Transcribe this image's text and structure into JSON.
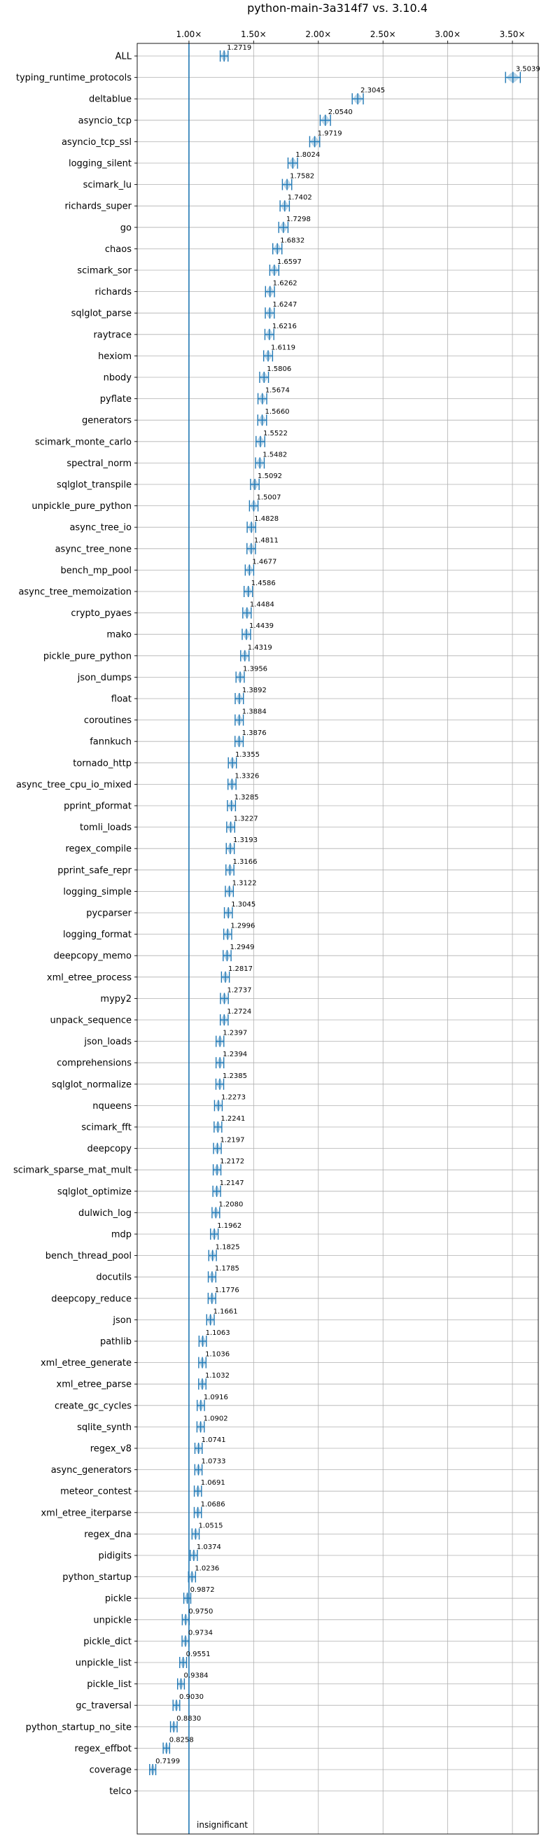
{
  "chart_data": {
    "type": "violin",
    "title": "python-main-3a314f7 vs. 3.10.4",
    "xlim": [
      0.6,
      3.7
    ],
    "x_ticks": [
      1.0,
      1.5,
      2.0,
      2.5,
      3.0,
      3.5
    ],
    "x_tick_labels": [
      "1.00×",
      "1.50×",
      "2.00×",
      "2.50×",
      "3.00×",
      "3.50×"
    ],
    "reference_line": 1.0,
    "grid": true,
    "insignificant_label": "insignificant",
    "benchmarks": [
      {
        "name": "ALL",
        "value": 1.2719,
        "label": "1.2719"
      },
      {
        "name": "typing_runtime_protocols",
        "value": 3.5039,
        "label": "3.5039"
      },
      {
        "name": "deltablue",
        "value": 2.3045,
        "label": "2.3045"
      },
      {
        "name": "asyncio_tcp",
        "value": 2.054,
        "label": "2.0540"
      },
      {
        "name": "asyncio_tcp_ssl",
        "value": 1.9719,
        "label": "1.9719"
      },
      {
        "name": "logging_silent",
        "value": 1.8024,
        "label": "1.8024"
      },
      {
        "name": "scimark_lu",
        "value": 1.7582,
        "label": "1.7582"
      },
      {
        "name": "richards_super",
        "value": 1.7402,
        "label": "1.7402"
      },
      {
        "name": "go",
        "value": 1.7298,
        "label": "1.7298"
      },
      {
        "name": "chaos",
        "value": 1.6832,
        "label": "1.6832"
      },
      {
        "name": "scimark_sor",
        "value": 1.6597,
        "label": "1.6597"
      },
      {
        "name": "richards",
        "value": 1.6262,
        "label": "1.6262"
      },
      {
        "name": "sqlglot_parse",
        "value": 1.6247,
        "label": "1.6247"
      },
      {
        "name": "raytrace",
        "value": 1.6216,
        "label": "1.6216"
      },
      {
        "name": "hexiom",
        "value": 1.6119,
        "label": "1.6119"
      },
      {
        "name": "nbody",
        "value": 1.5806,
        "label": "1.5806"
      },
      {
        "name": "pyflate",
        "value": 1.5674,
        "label": "1.5674"
      },
      {
        "name": "generators",
        "value": 1.566,
        "label": "1.5660"
      },
      {
        "name": "scimark_monte_carlo",
        "value": 1.5522,
        "label": "1.5522"
      },
      {
        "name": "spectral_norm",
        "value": 1.5482,
        "label": "1.5482"
      },
      {
        "name": "sqlglot_transpile",
        "value": 1.5092,
        "label": "1.5092"
      },
      {
        "name": "unpickle_pure_python",
        "value": 1.5007,
        "label": "1.5007"
      },
      {
        "name": "async_tree_io",
        "value": 1.4828,
        "label": "1.4828"
      },
      {
        "name": "async_tree_none",
        "value": 1.4811,
        "label": "1.4811"
      },
      {
        "name": "bench_mp_pool",
        "value": 1.4677,
        "label": "1.4677"
      },
      {
        "name": "async_tree_memoization",
        "value": 1.4586,
        "label": "1.4586"
      },
      {
        "name": "crypto_pyaes",
        "value": 1.4484,
        "label": "1.4484"
      },
      {
        "name": "mako",
        "value": 1.4439,
        "label": "1.4439"
      },
      {
        "name": "pickle_pure_python",
        "value": 1.4319,
        "label": "1.4319"
      },
      {
        "name": "json_dumps",
        "value": 1.3956,
        "label": "1.3956"
      },
      {
        "name": "float",
        "value": 1.3892,
        "label": "1.3892"
      },
      {
        "name": "coroutines",
        "value": 1.3884,
        "label": "1.3884"
      },
      {
        "name": "fannkuch",
        "value": 1.3876,
        "label": "1.3876"
      },
      {
        "name": "tornado_http",
        "value": 1.3355,
        "label": "1.3355"
      },
      {
        "name": "async_tree_cpu_io_mixed",
        "value": 1.3326,
        "label": "1.3326"
      },
      {
        "name": "pprint_pformat",
        "value": 1.3285,
        "label": "1.3285"
      },
      {
        "name": "tomli_loads",
        "value": 1.3227,
        "label": "1.3227"
      },
      {
        "name": "regex_compile",
        "value": 1.3193,
        "label": "1.3193"
      },
      {
        "name": "pprint_safe_repr",
        "value": 1.3166,
        "label": "1.3166"
      },
      {
        "name": "logging_simple",
        "value": 1.3122,
        "label": "1.3122"
      },
      {
        "name": "pycparser",
        "value": 1.3045,
        "label": "1.3045"
      },
      {
        "name": "logging_format",
        "value": 1.2996,
        "label": "1.2996"
      },
      {
        "name": "deepcopy_memo",
        "value": 1.2949,
        "label": "1.2949"
      },
      {
        "name": "xml_etree_process",
        "value": 1.2817,
        "label": "1.2817"
      },
      {
        "name": "mypy2",
        "value": 1.2737,
        "label": "1.2737"
      },
      {
        "name": "unpack_sequence",
        "value": 1.2724,
        "label": "1.2724"
      },
      {
        "name": "json_loads",
        "value": 1.2397,
        "label": "1.2397"
      },
      {
        "name": "comprehensions",
        "value": 1.2394,
        "label": "1.2394"
      },
      {
        "name": "sqlglot_normalize",
        "value": 1.2385,
        "label": "1.2385"
      },
      {
        "name": "nqueens",
        "value": 1.2273,
        "label": "1.2273"
      },
      {
        "name": "scimark_fft",
        "value": 1.2241,
        "label": "1.2241"
      },
      {
        "name": "deepcopy",
        "value": 1.2197,
        "label": "1.2197"
      },
      {
        "name": "scimark_sparse_mat_mult",
        "value": 1.2172,
        "label": "1.2172"
      },
      {
        "name": "sqlglot_optimize",
        "value": 1.2147,
        "label": "1.2147"
      },
      {
        "name": "dulwich_log",
        "value": 1.208,
        "label": "1.2080"
      },
      {
        "name": "mdp",
        "value": 1.1962,
        "label": "1.1962"
      },
      {
        "name": "bench_thread_pool",
        "value": 1.1825,
        "label": "1.1825"
      },
      {
        "name": "docutils",
        "value": 1.1785,
        "label": "1.1785"
      },
      {
        "name": "deepcopy_reduce",
        "value": 1.1776,
        "label": "1.1776"
      },
      {
        "name": "json",
        "value": 1.1661,
        "label": "1.1661"
      },
      {
        "name": "pathlib",
        "value": 1.1063,
        "label": "1.1063"
      },
      {
        "name": "xml_etree_generate",
        "value": 1.1036,
        "label": "1.1036"
      },
      {
        "name": "xml_etree_parse",
        "value": 1.1032,
        "label": "1.1032"
      },
      {
        "name": "create_gc_cycles",
        "value": 1.0916,
        "label": "1.0916"
      },
      {
        "name": "sqlite_synth",
        "value": 1.0902,
        "label": "1.0902"
      },
      {
        "name": "regex_v8",
        "value": 1.0741,
        "label": "1.0741"
      },
      {
        "name": "async_generators",
        "value": 1.0733,
        "label": "1.0733"
      },
      {
        "name": "meteor_contest",
        "value": 1.0691,
        "label": "1.0691"
      },
      {
        "name": "xml_etree_iterparse",
        "value": 1.0686,
        "label": "1.0686"
      },
      {
        "name": "regex_dna",
        "value": 1.0515,
        "label": "1.0515"
      },
      {
        "name": "pidigits",
        "value": 1.0374,
        "label": "1.0374"
      },
      {
        "name": "python_startup",
        "value": 1.0236,
        "label": "1.0236"
      },
      {
        "name": "pickle",
        "value": 0.9872,
        "label": "0.9872"
      },
      {
        "name": "unpickle",
        "value": 0.975,
        "label": "0.9750"
      },
      {
        "name": "pickle_dict",
        "value": 0.9734,
        "label": "0.9734"
      },
      {
        "name": "unpickle_list",
        "value": 0.9551,
        "label": "0.9551"
      },
      {
        "name": "pickle_list",
        "value": 0.9384,
        "label": "0.9384"
      },
      {
        "name": "gc_traversal",
        "value": 0.903,
        "label": "0.9030"
      },
      {
        "name": "python_startup_no_site",
        "value": 0.883,
        "label": "0.8830"
      },
      {
        "name": "regex_effbot",
        "value": 0.8258,
        "label": "0.8258"
      },
      {
        "name": "coverage",
        "value": 0.7199,
        "label": "0.7199"
      },
      {
        "name": "telco",
        "value": null,
        "label": ""
      }
    ]
  },
  "colors": {
    "line": "#1f77b4",
    "violin_fill": "#1f77b4",
    "grid": "#b0b0b0",
    "axis": "#000000"
  }
}
